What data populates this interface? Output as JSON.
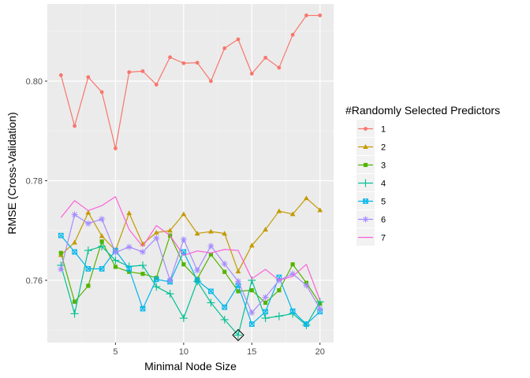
{
  "chart_data": {
    "type": "line",
    "title": "",
    "xlabel": "Minimal Node Size",
    "ylabel": "RMSE (Cross-Validation)",
    "xlim": [
      0,
      21
    ],
    "ylim": [
      0.7475,
      0.8155
    ],
    "x_ticks": [
      5,
      10,
      15,
      20
    ],
    "y_ticks": [
      0.76,
      0.78,
      0.8
    ],
    "x_tick_labels": [
      "5",
      "10",
      "15",
      "20"
    ],
    "y_tick_labels": [
      "0.76",
      "0.78",
      "0.80"
    ],
    "grid": true,
    "legend": {
      "title": "#Randomly Selected Predictors",
      "placement": "right"
    },
    "x": [
      1,
      2,
      3,
      4,
      5,
      6,
      7,
      8,
      9,
      10,
      11,
      12,
      13,
      14,
      15,
      16,
      17,
      18,
      19,
      20
    ],
    "series": [
      {
        "name": "1",
        "color": "#F8766D",
        "marker": "circle",
        "values": [
          0.8012,
          0.791,
          0.8008,
          0.7978,
          0.7865,
          0.8018,
          0.802,
          0.7993,
          0.8048,
          0.8036,
          0.8037,
          0.8,
          0.8066,
          0.8084,
          0.8015,
          0.8047,
          0.8027,
          0.8093,
          0.8132,
          0.8132
        ]
      },
      {
        "name": "2",
        "color": "#C49A00",
        "marker": "triangle",
        "values": [
          0.7651,
          0.7676,
          0.7736,
          0.7689,
          0.766,
          0.7735,
          0.7673,
          0.7696,
          0.77,
          0.7733,
          0.7694,
          0.7698,
          0.7694,
          0.7618,
          0.767,
          0.7702,
          0.7739,
          0.7733,
          0.7765,
          0.7741
        ]
      },
      {
        "name": "3",
        "color": "#53B400",
        "marker": "square",
        "values": [
          0.7655,
          0.7557,
          0.7589,
          0.7678,
          0.7627,
          0.7617,
          0.7613,
          0.7605,
          0.769,
          0.7632,
          0.7603,
          0.7652,
          0.7617,
          0.7578,
          0.758,
          0.7555,
          0.758,
          0.7632,
          0.7595,
          0.7553
        ]
      },
      {
        "name": "4",
        "color": "#00C094",
        "marker": "plus",
        "values": [
          0.763,
          0.7533,
          0.766,
          0.7668,
          0.764,
          0.7628,
          0.763,
          0.7587,
          0.7573,
          0.7524,
          0.7598,
          0.7555,
          0.7521,
          0.749,
          0.76,
          0.7524,
          0.7528,
          0.7533,
          0.751,
          0.7557
        ]
      },
      {
        "name": "5",
        "color": "#00B6EB",
        "marker": "boxx",
        "values": [
          0.769,
          0.7657,
          0.7623,
          0.7623,
          0.766,
          0.7623,
          0.7543,
          0.7602,
          0.7597,
          0.7657,
          0.76,
          0.7578,
          0.7546,
          0.759,
          0.7512,
          0.7537,
          0.7606,
          0.7538,
          0.7512,
          0.7537
        ]
      },
      {
        "name": "6",
        "color": "#A58AFF",
        "marker": "asterisk",
        "values": [
          0.7622,
          0.7732,
          0.7714,
          0.7723,
          0.7656,
          0.7667,
          0.7657,
          0.7685,
          0.76,
          0.7682,
          0.762,
          0.7669,
          0.7633,
          0.7598,
          0.7535,
          0.7566,
          0.76,
          0.7613,
          0.759,
          0.7543
        ]
      },
      {
        "name": "7",
        "color": "#FB61D7",
        "marker": "none",
        "values": [
          0.7726,
          0.776,
          0.774,
          0.775,
          0.7768,
          0.7702,
          0.7668,
          0.771,
          0.769,
          0.765,
          0.7659,
          0.7655,
          0.7662,
          0.766,
          0.7603,
          0.7622,
          0.76,
          0.7608,
          0.7632,
          0.756
        ]
      }
    ],
    "annotations": [
      {
        "type": "diamond",
        "x": 14,
        "y": 0.749,
        "color": "#000000"
      }
    ]
  }
}
